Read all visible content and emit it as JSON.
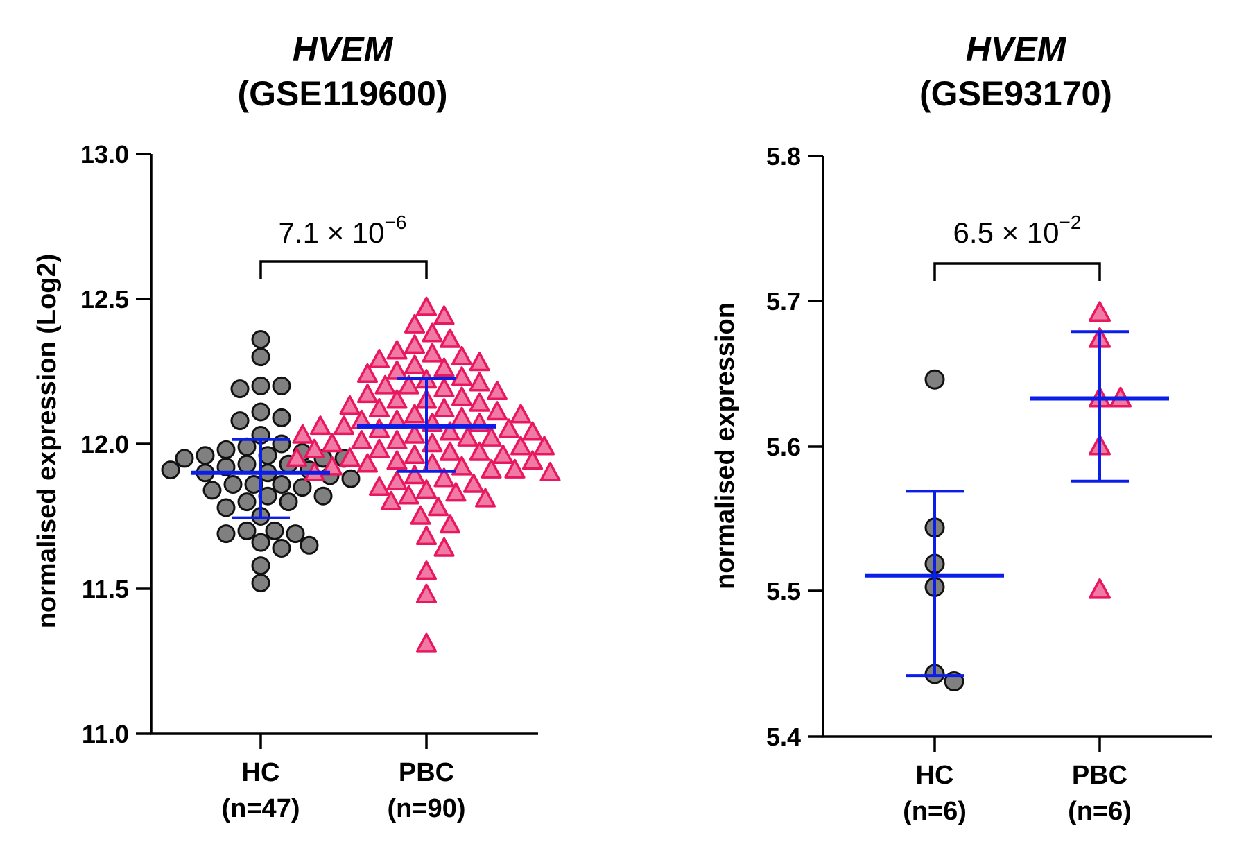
{
  "chart_data": [
    {
      "type": "scatter",
      "title_gene": "HVEM",
      "title_dataset": "(GSE119600)",
      "ylabel": "normalised expression (Log2)",
      "ylim": [
        11.0,
        13.0
      ],
      "yticks": [
        "11.0",
        "11.5",
        "12.0",
        "12.5",
        "13.0"
      ],
      "pvalue": {
        "mantissa": "7.1 × 10",
        "exponent": "−6"
      },
      "groups": [
        {
          "name": "HC",
          "n_label": "(n=47)",
          "marker": "circle",
          "color": "#808080",
          "edge": "#111111",
          "mean": 11.9,
          "err_low": 11.745,
          "err_high": 12.015,
          "values": [
            12.36,
            12.3,
            12.2,
            12.2,
            12.19,
            12.11,
            12.09,
            12.08,
            12.03,
            12.0,
            11.99,
            11.98,
            11.97,
            11.96,
            11.96,
            11.95,
            11.95,
            11.95,
            11.93,
            11.93,
            11.92,
            11.91,
            11.91,
            11.9,
            11.9,
            11.89,
            11.88,
            11.86,
            11.86,
            11.86,
            11.85,
            11.84,
            11.82,
            11.82,
            11.8,
            11.8,
            11.78,
            11.75,
            11.7,
            11.7,
            11.69,
            11.69,
            11.66,
            11.65,
            11.64,
            11.58,
            11.52
          ]
        },
        {
          "name": "PBC",
          "n_label": "(n=90)",
          "marker": "triangle",
          "color": "#f07aa5",
          "edge": "#e8185f",
          "mean": 12.06,
          "err_low": 11.905,
          "err_high": 12.225,
          "values": [
            12.47,
            12.44,
            12.41,
            12.38,
            12.36,
            12.34,
            12.32,
            12.31,
            12.3,
            12.29,
            12.28,
            12.27,
            12.26,
            12.25,
            12.24,
            12.23,
            12.22,
            12.21,
            12.2,
            12.2,
            12.19,
            12.18,
            12.17,
            12.16,
            12.15,
            12.15,
            12.14,
            12.13,
            12.12,
            12.12,
            12.11,
            12.1,
            12.1,
            12.09,
            12.08,
            12.08,
            12.07,
            12.07,
            12.06,
            12.06,
            12.05,
            12.05,
            12.04,
            12.04,
            12.03,
            12.03,
            12.02,
            12.02,
            12.01,
            12.01,
            12.0,
            12.0,
            11.99,
            11.99,
            11.98,
            11.98,
            11.97,
            11.97,
            11.96,
            11.96,
            11.95,
            11.95,
            11.94,
            11.94,
            11.93,
            11.93,
            11.92,
            11.92,
            11.91,
            11.91,
            11.9,
            11.9,
            11.89,
            11.88,
            11.87,
            11.86,
            11.85,
            11.84,
            11.83,
            11.82,
            11.81,
            11.8,
            11.78,
            11.75,
            11.72,
            11.68,
            11.64,
            11.56,
            11.48,
            11.31
          ]
        }
      ]
    },
    {
      "type": "scatter",
      "title_gene": "HVEM",
      "title_dataset": "(GSE93170)",
      "ylabel": "normalised expression",
      "ylim": [
        5.4,
        5.8
      ],
      "yticks": [
        "5.4",
        "5.5",
        "5.6",
        "5.7",
        "5.8"
      ],
      "pvalue": {
        "mantissa": "6.5 × 10",
        "exponent": "−2"
      },
      "groups": [
        {
          "name": "HC",
          "n_label": "(n=6)",
          "marker": "circle",
          "color": "#808080",
          "edge": "#111111",
          "mean": 5.511,
          "err_low": 5.442,
          "err_high": 5.569,
          "values": [
            5.646,
            5.544,
            5.519,
            5.503,
            5.443,
            5.438
          ]
        },
        {
          "name": "PBC",
          "n_label": "(n=6)",
          "marker": "triangle",
          "color": "#f07aa5",
          "edge": "#e8185f",
          "mean": 5.633,
          "err_low": 5.576,
          "err_high": 5.679,
          "values": [
            5.692,
            5.674,
            5.633,
            5.633,
            5.6,
            5.501
          ]
        }
      ]
    }
  ],
  "colors": {
    "mean_bar": "#0b1ee8",
    "axis": "#000000"
  }
}
